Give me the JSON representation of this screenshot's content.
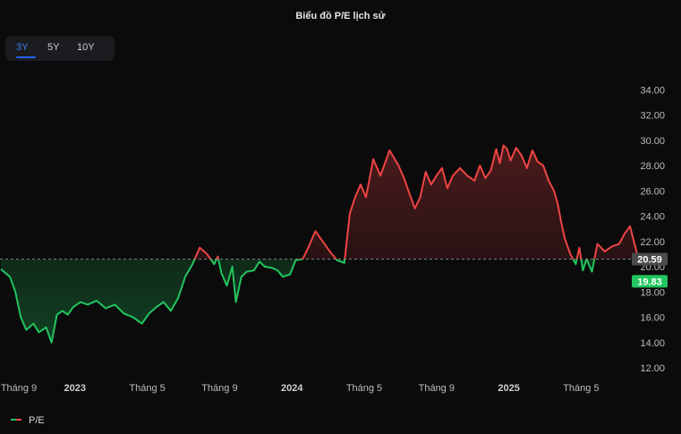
{
  "header": {
    "title": "Biểu đồ P/E lịch sử"
  },
  "range_tabs": {
    "items": [
      "3Y",
      "5Y",
      "10Y"
    ],
    "active": "3Y"
  },
  "legend": {
    "label": "P/E"
  },
  "badges": {
    "current": "20.59",
    "reference": "19.83"
  },
  "colors": {
    "above": "#ef4444",
    "below": "#22c55e",
    "background": "#0b0b0c",
    "grid_line": "#9ca3af"
  },
  "chart_data": {
    "type": "line",
    "title": "Biểu đồ P/E lịch sử",
    "xlabel": "",
    "ylabel": "",
    "y_ticks": [
      "12.00",
      "14.00",
      "16.00",
      "18.00",
      "20.00",
      "22.00",
      "24.00",
      "26.00",
      "28.00",
      "30.00",
      "32.00",
      "34.00"
    ],
    "ylim": [
      11.5,
      34.5
    ],
    "x_ticks": [
      "Tháng 9",
      "2023",
      "Tháng 5",
      "Tháng 9",
      "2024",
      "Tháng 5",
      "Tháng 9",
      "2025",
      "Tháng 5"
    ],
    "x_tick_months": [
      0,
      4,
      8,
      12,
      16,
      20,
      24,
      28,
      32
    ],
    "x_range_months": [
      0,
      36
    ],
    "baseline": 20.59,
    "reference_value": 19.83,
    "series": [
      {
        "name": "P/E",
        "x": [
          0,
          0.5,
          0.8,
          1.1,
          1.4,
          1.8,
          2.1,
          2.5,
          2.8,
          3.1,
          3.4,
          3.7,
          4.0,
          4.4,
          4.8,
          5.3,
          5.8,
          6.3,
          6.8,
          7.3,
          7.8,
          8.2,
          8.6,
          9.0,
          9.4,
          9.8,
          10.2,
          10.6,
          11.0,
          11.4,
          11.8,
          12.0,
          12.2,
          12.5,
          12.8,
          13.0,
          13.3,
          13.6,
          14.0,
          14.3,
          14.6,
          15.0,
          15.3,
          15.6,
          16.0,
          16.3,
          16.7,
          17.0,
          17.4,
          17.8,
          18.2,
          18.6,
          19.0,
          19.3,
          19.6,
          19.9,
          20.2,
          20.6,
          21.0,
          21.5,
          22.0,
          22.3,
          22.6,
          22.9,
          23.2,
          23.5,
          23.8,
          24.1,
          24.4,
          24.7,
          25.0,
          25.4,
          25.8,
          26.2,
          26.5,
          26.8,
          27.1,
          27.4,
          27.6,
          27.8,
          28.0,
          28.2,
          28.5,
          28.8,
          29.1,
          29.4,
          29.7,
          30.0,
          30.3,
          30.6,
          30.8,
          31.0,
          31.2,
          31.5,
          31.8,
          32.0,
          32.2,
          32.4,
          32.7,
          33.0,
          33.4,
          33.8,
          34.2,
          34.5,
          34.8,
          35.2,
          35.5,
          35.8
        ],
        "y": [
          19.8,
          19.2,
          18.0,
          16.0,
          15.0,
          15.5,
          14.8,
          15.2,
          14.0,
          16.2,
          16.5,
          16.2,
          16.8,
          17.2,
          17.0,
          17.3,
          16.7,
          17.0,
          16.3,
          16.0,
          15.5,
          16.3,
          16.8,
          17.2,
          16.5,
          17.5,
          19.2,
          20.2,
          21.5,
          21.0,
          20.2,
          20.8,
          19.5,
          18.5,
          20.0,
          17.2,
          19.2,
          19.6,
          19.7,
          20.4,
          20.0,
          19.9,
          19.7,
          19.2,
          19.4,
          20.5,
          20.6,
          21.5,
          22.8,
          22.0,
          21.2,
          20.5,
          20.3,
          24.2,
          25.5,
          26.5,
          25.5,
          28.5,
          27.2,
          29.2,
          28.0,
          27.0,
          25.8,
          24.6,
          25.5,
          27.5,
          26.5,
          27.2,
          27.8,
          26.2,
          27.2,
          27.8,
          27.2,
          26.8,
          28.0,
          27.0,
          27.6,
          29.3,
          28.2,
          29.6,
          29.3,
          28.4,
          29.4,
          28.8,
          27.8,
          29.2,
          28.3,
          28.0,
          26.8,
          26.0,
          25.0,
          23.5,
          22.2,
          21.0,
          20.2,
          21.5,
          19.7,
          20.6,
          19.6,
          21.8,
          21.2,
          21.6,
          21.8,
          22.6,
          23.2,
          21.0,
          20.7,
          20.6
        ]
      }
    ]
  }
}
